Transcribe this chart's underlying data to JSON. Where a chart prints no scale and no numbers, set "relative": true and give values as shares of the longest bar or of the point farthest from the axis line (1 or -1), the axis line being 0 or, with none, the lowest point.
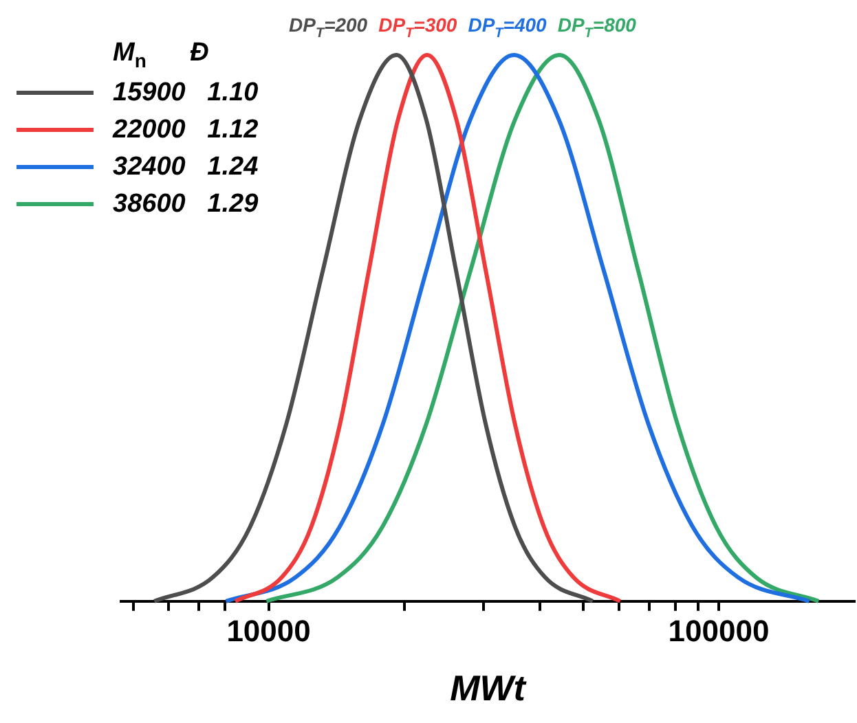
{
  "chart_data": {
    "type": "line",
    "relative": true,
    "log": "x",
    "xlabel": "MWt",
    "legend": "top left",
    "legend_title": "M$_{n}$      Đ",
    "marker": "none",
    "line_style": "solid",
    "grid": false,
    "xlim": [
      4700,
      200000
    ],
    "xticks": [
      {
        "value": 5000,
        "label": null
      },
      {
        "value": 6000,
        "label": null
      },
      {
        "value": 7000,
        "label": null
      },
      {
        "value": 8000,
        "label": null
      },
      10000,
      {
        "value": 20000,
        "label": null
      },
      {
        "value": 30000,
        "label": null
      },
      {
        "value": 40000,
        "label": null
      },
      {
        "value": 50000,
        "label": null
      },
      {
        "value": 60000,
        "label": null
      },
      {
        "value": 70000,
        "label": null
      },
      {
        "value": 80000,
        "label": null
      },
      {
        "value": 90000,
        "label": null
      },
      100000
    ],
    "annotations": [
      "DP$_{T}$=200",
      "DP$_{T}$=300",
      "DP$_{T}$=400",
      "DP$_{T}$=800"
    ],
    "series": [
      {
        "name": "15900   1.10",
        "color": "#4d4d4d",
        "x": [
          5570,
          7520,
          9080,
          10950,
          13210,
          15940,
          19230,
          22390,
          26060,
          30340,
          35320,
          41110,
          52480
        ],
        "values": [
          0,
          0.044,
          0.135,
          0.325,
          0.607,
          0.882,
          1,
          0.882,
          0.607,
          0.325,
          0.135,
          0.044,
          0
        ]
      },
      {
        "name": "22000   1.12",
        "color": "#ee3b3b",
        "x": [
          8430,
          10700,
          12420,
          14410,
          16710,
          19390,
          22490,
          26120,
          30340,
          35240,
          40930,
          47530,
          60390
        ],
        "values": [
          0,
          0.044,
          0.135,
          0.325,
          0.607,
          0.882,
          1,
          0.882,
          0.607,
          0.325,
          0.135,
          0.044,
          0
        ]
      },
      {
        "name": "32400   1.24",
        "color": "#1f6fe0",
        "x": [
          8040,
          11480,
          14350,
          17950,
          22440,
          28050,
          35080,
          44120,
          55460,
          69740,
          87700,
          110300,
          158900
        ],
        "values": [
          0,
          0.044,
          0.135,
          0.325,
          0.607,
          0.882,
          1,
          0.882,
          0.607,
          0.325,
          0.135,
          0.044,
          0
        ]
      },
      {
        "name": "38600   1.29",
        "color": "#33a867",
        "x": [
          9890,
          14240,
          17860,
          22410,
          28120,
          35280,
          44260,
          54080,
          66140,
          80910,
          98860,
          120900,
          166700
        ],
        "values": [
          0,
          0.044,
          0.135,
          0.325,
          0.607,
          0.882,
          1,
          0.882,
          0.607,
          0.325,
          0.135,
          0.044,
          0
        ]
      }
    ]
  }
}
